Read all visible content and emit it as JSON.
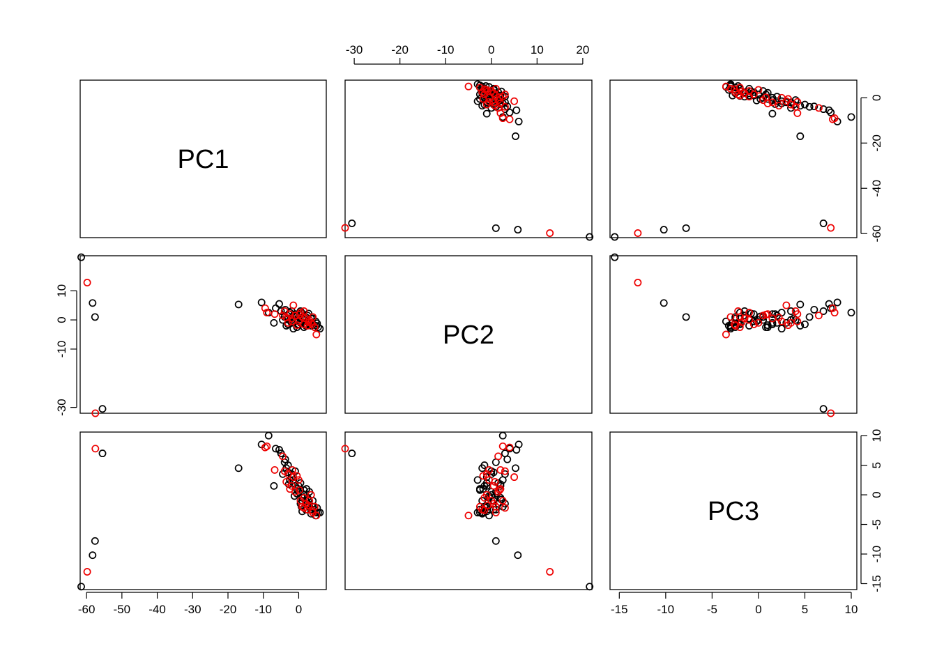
{
  "chart_data": {
    "type": "scatter",
    "variables": [
      "PC1",
      "PC2",
      "PC3"
    ],
    "ranges": {
      "PC1": [
        -61.8,
        7.8
      ],
      "PC2": [
        -32.0,
        22.0
      ],
      "PC3": [
        -16.0,
        10.6
      ]
    },
    "ticks": {
      "PC1": [
        -60,
        -50,
        -40,
        -30,
        -20,
        -10,
        0
      ],
      "PC2": [
        -30,
        -20,
        -10,
        0,
        10,
        20
      ],
      "PC2_left": [
        -30,
        -10,
        0,
        10
      ],
      "PC3": [
        -15,
        -10,
        -5,
        0,
        5,
        10
      ]
    },
    "right_axis_PC1_ticks": [
      -60,
      -40,
      -20,
      0
    ],
    "series": [
      {
        "color": "#000000",
        "points": [
          [
            -61.5,
            21.5,
            -15.5
          ],
          [
            -58.3,
            5.8,
            -10.2
          ],
          [
            -57.6,
            1.0,
            -7.8
          ],
          [
            -55.5,
            -30.5,
            7.0
          ],
          [
            -17.0,
            5.3,
            4.5
          ],
          [
            -10.5,
            6.0,
            8.5
          ],
          [
            -8.5,
            2.5,
            10.0
          ],
          [
            -7.0,
            -1.0,
            1.5
          ],
          [
            -6.5,
            4.0,
            7.8
          ],
          [
            -5.5,
            5.5,
            7.6
          ],
          [
            -5.0,
            3.0,
            7.0
          ],
          [
            -4.0,
            1.0,
            5.5
          ],
          [
            -3.5,
            -2.0,
            4.5
          ],
          [
            -3.0,
            0.5,
            3.8
          ],
          [
            -2.5,
            2.5,
            2.5
          ],
          [
            -2.0,
            -1.0,
            3.0
          ],
          [
            -1.5,
            1.5,
            2.0
          ],
          [
            -1.0,
            0.0,
            4.0
          ],
          [
            -0.5,
            -2.5,
            1.0
          ],
          [
            0.0,
            1.0,
            0.5
          ],
          [
            0.5,
            -1.0,
            2.0
          ],
          [
            1.0,
            2.0,
            -0.5
          ],
          [
            1.5,
            0.0,
            0.0
          ],
          [
            2.0,
            -2.0,
            -1.0
          ],
          [
            2.5,
            1.5,
            -1.5
          ],
          [
            3.0,
            -1.0,
            -2.0
          ],
          [
            3.5,
            0.5,
            -2.5
          ],
          [
            4.0,
            -1.5,
            -2.0
          ],
          [
            4.5,
            -2.5,
            -2.5
          ],
          [
            5.0,
            -2.0,
            -3.0
          ],
          [
            5.5,
            -2.5,
            -3.0
          ],
          [
            6.0,
            -3.0,
            -3.0
          ],
          [
            -2.0,
            3.0,
            3.5
          ],
          [
            -1.0,
            2.0,
            1.5
          ],
          [
            0.0,
            -1.5,
            1.5
          ],
          [
            1.0,
            0.5,
            -1.0
          ],
          [
            2.0,
            1.0,
            -2.5
          ],
          [
            3.0,
            0.0,
            0.5
          ],
          [
            -3.0,
            -1.5,
            5.0
          ],
          [
            0.5,
            3.0,
            -1.5
          ],
          [
            1.5,
            -2.5,
            0.8
          ],
          [
            2.5,
            -0.5,
            -0.5
          ],
          [
            4.0,
            0.5,
            -1.0
          ],
          [
            -4.5,
            0.0,
            3.5
          ],
          [
            -1.5,
            -3.0,
            2.5
          ],
          [
            3.5,
            -2.0,
            -3.2
          ],
          [
            1.0,
            -1.0,
            -2.8
          ],
          [
            -0.5,
            1.2,
            0.2
          ],
          [
            -2.8,
            2.0,
            1.8
          ],
          [
            0.8,
            2.5,
            -2.0
          ],
          [
            2.2,
            -1.8,
            1.0
          ],
          [
            4.8,
            -0.5,
            -3.5
          ],
          [
            -3.8,
            3.5,
            6.0
          ],
          [
            -1.2,
            -0.5,
            -0.2
          ],
          [
            2.8,
            2.2,
            -0.8
          ],
          [
            5.2,
            -1.2,
            -2.2
          ]
        ]
      },
      {
        "color": "#ee0000",
        "points": [
          [
            -59.8,
            12.8,
            -13.0
          ],
          [
            -57.5,
            -32.0,
            7.8
          ],
          [
            -9.5,
            4.0,
            8.0
          ],
          [
            -9.0,
            2.5,
            8.2
          ],
          [
            -6.8,
            2.0,
            4.2
          ],
          [
            -4.5,
            1.5,
            6.5
          ],
          [
            -4.0,
            3.0,
            4.0
          ],
          [
            -3.0,
            -1.0,
            3.5
          ],
          [
            -2.0,
            0.5,
            1.5
          ],
          [
            -1.5,
            5.0,
            3.0
          ],
          [
            -1.0,
            1.5,
            0.5
          ],
          [
            0.0,
            -0.5,
            2.5
          ],
          [
            0.5,
            2.5,
            -1.0
          ],
          [
            1.0,
            1.0,
            -2.0
          ],
          [
            1.5,
            -1.5,
            -0.5
          ],
          [
            2.0,
            0.5,
            -1.5
          ],
          [
            2.5,
            -2.0,
            -2.5
          ],
          [
            3.0,
            0.0,
            -1.0
          ],
          [
            3.5,
            -1.0,
            0.0
          ],
          [
            4.0,
            1.0,
            -3.0
          ],
          [
            4.5,
            -2.5,
            -2.0
          ],
          [
            5.0,
            -5.0,
            -3.5
          ],
          [
            -2.5,
            2.0,
            1.0
          ],
          [
            1.5,
            3.0,
            -2.2
          ],
          [
            -0.5,
            -1.8,
            3.2
          ],
          [
            2.8,
            -0.8,
            -1.8
          ],
          [
            -3.5,
            0.8,
            2.2
          ],
          [
            0.2,
            1.8,
            0.8
          ],
          [
            3.8,
            -1.5,
            -2.6
          ],
          [
            -1.8,
            -0.5,
            4.2
          ]
        ]
      }
    ]
  }
}
